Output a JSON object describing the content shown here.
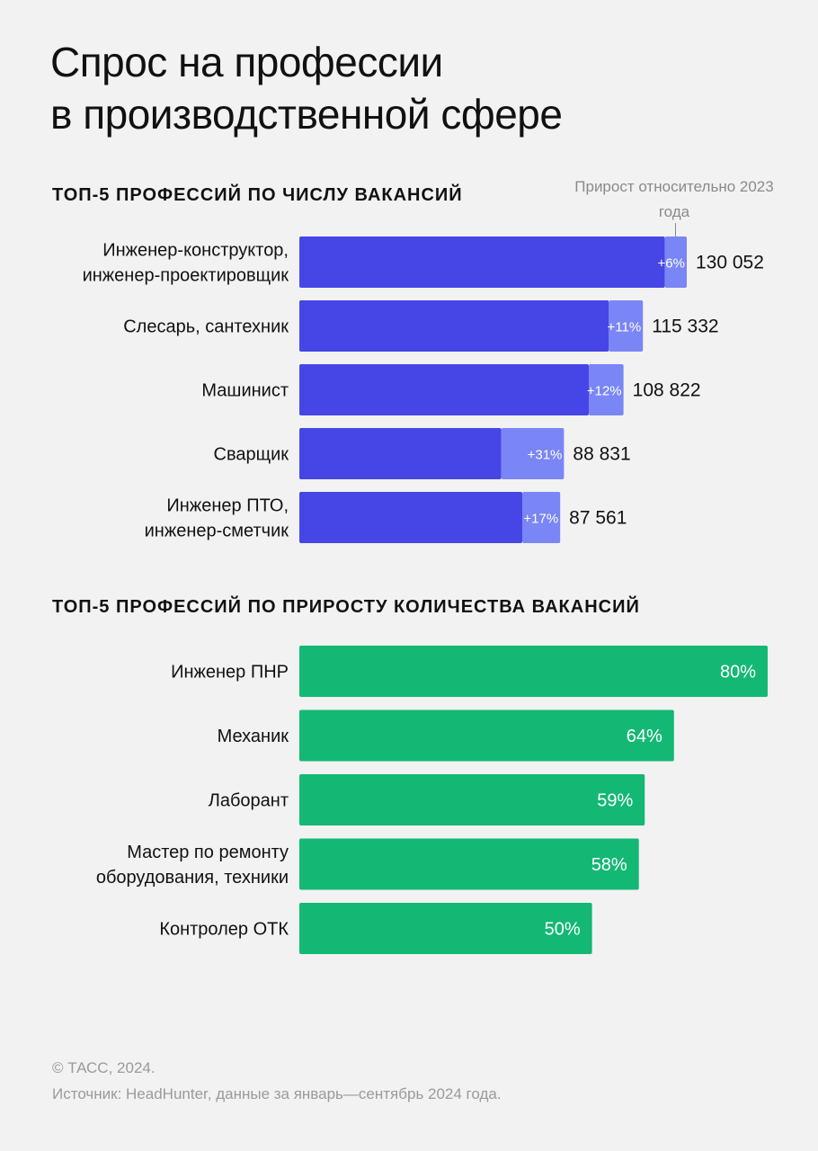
{
  "title": {
    "line1": "Спрос на профессии",
    "line2": "в производственной сфере"
  },
  "colors": {
    "base_bar": "#4646e6",
    "growth_bar": "#7a86f5",
    "green_bar": "#13b874",
    "background": "#f2f2f2"
  },
  "chart_data": [
    {
      "type": "bar",
      "orientation": "horizontal",
      "stacked": true,
      "title": "ТОП-5 ПРОФЕССИЙ ПО ЧИСЛУ ВАКАНСИЙ",
      "annotation": "Прирост относительно 2023 года",
      "categories": [
        [
          "Инженер-конструктор,",
          "инженер-проектировщик"
        ],
        [
          "Слесарь, сантехник"
        ],
        [
          "Машинист"
        ],
        [
          "Сварщик"
        ],
        [
          "Инженер ПТО,",
          "инженер-сметчик"
        ]
      ],
      "values": [
        130052,
        115332,
        108822,
        88831,
        87561
      ],
      "value_labels": [
        "130 052",
        "115 332",
        "108 822",
        "88 831",
        "87 561"
      ],
      "growth_percent": [
        6,
        11,
        12,
        31,
        17
      ],
      "growth_labels": [
        "+6%",
        "+11%",
        "+12%",
        "+31%",
        "+17%"
      ],
      "xlim": [
        0,
        137000
      ]
    },
    {
      "type": "bar",
      "orientation": "horizontal",
      "title": "ТОП-5 ПРОФЕССИЙ ПО ПРИРОСТУ КОЛИЧЕСТВА ВАКАНСИЙ",
      "categories": [
        [
          "Инженер ПНР"
        ],
        [
          "Механик"
        ],
        [
          "Лаборант"
        ],
        [
          "Мастер по ремонту",
          "оборудования, техники"
        ],
        [
          "Контролер ОТК"
        ]
      ],
      "values": [
        80,
        64,
        59,
        58,
        50
      ],
      "value_labels": [
        "80%",
        "64%",
        "59%",
        "58%",
        "50%"
      ],
      "xlim": [
        0,
        80
      ]
    }
  ],
  "footer": {
    "copyright": "© ТАСС, 2024.",
    "source": "Источник: HeadHunter, данные за январь—сентябрь 2024 года."
  }
}
